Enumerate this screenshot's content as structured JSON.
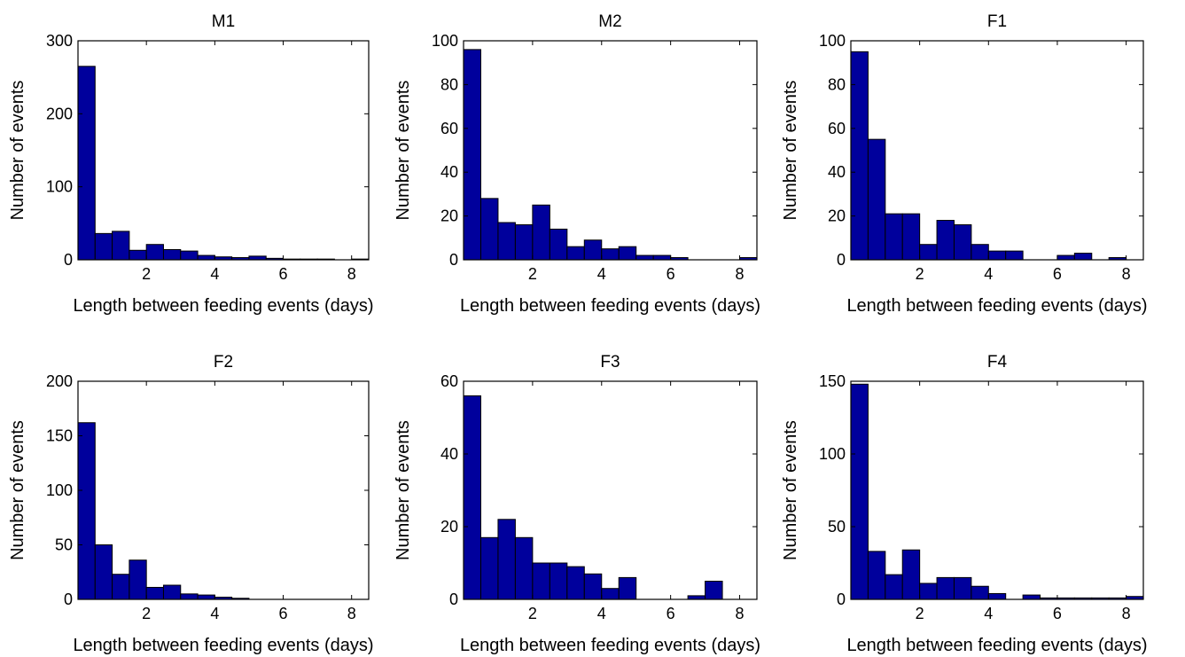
{
  "chart_data": [
    {
      "type": "bar",
      "title": "M1",
      "xlabel": "Length between feeding events (days)",
      "ylabel": "Number of events",
      "xlim": [
        0,
        8.5
      ],
      "ylim": [
        0,
        300
      ],
      "bin_width": 0.5,
      "bin_starts": [
        0,
        0.5,
        1,
        1.5,
        2,
        2.5,
        3,
        3.5,
        4,
        4.5,
        5,
        5.5,
        6,
        6.5,
        7,
        7.5,
        8
      ],
      "values": [
        265,
        36,
        39,
        13,
        21,
        14,
        12,
        6,
        4,
        3,
        5,
        2,
        1,
        1,
        1,
        0,
        1
      ],
      "xticks": [
        "2",
        "4",
        "6",
        "8"
      ],
      "yticks": [
        "0",
        "100",
        "200",
        "300"
      ]
    },
    {
      "type": "bar",
      "title": "M2",
      "xlabel": "Length between feeding events (days)",
      "ylabel": "Number of events",
      "xlim": [
        0,
        8.5
      ],
      "ylim": [
        0,
        100
      ],
      "bin_width": 0.5,
      "bin_starts": [
        0,
        0.5,
        1,
        1.5,
        2,
        2.5,
        3,
        3.5,
        4,
        4.5,
        5,
        5.5,
        6,
        6.5,
        7,
        7.5,
        8
      ],
      "values": [
        96,
        28,
        17,
        16,
        25,
        14,
        6,
        9,
        5,
        6,
        2,
        2,
        1,
        0,
        0,
        0,
        1
      ],
      "xticks": [
        "2",
        "4",
        "6",
        "8"
      ],
      "yticks": [
        "0",
        "20",
        "40",
        "60",
        "80",
        "100"
      ]
    },
    {
      "type": "bar",
      "title": "F1",
      "xlabel": "Length between feeding events (days)",
      "ylabel": "Number of events",
      "xlim": [
        0,
        8.5
      ],
      "ylim": [
        0,
        100
      ],
      "bin_width": 0.5,
      "bin_starts": [
        0,
        0.5,
        1,
        1.5,
        2,
        2.5,
        3,
        3.5,
        4,
        4.5,
        5,
        5.5,
        6,
        6.5,
        7,
        7.5,
        8
      ],
      "values": [
        95,
        55,
        21,
        21,
        7,
        18,
        16,
        7,
        4,
        4,
        0,
        0,
        2,
        3,
        0,
        1,
        0
      ],
      "xticks": [
        "2",
        "4",
        "6",
        "8"
      ],
      "yticks": [
        "0",
        "20",
        "40",
        "60",
        "80",
        "100"
      ]
    },
    {
      "type": "bar",
      "title": "F2",
      "xlabel": "Length between feeding events (days)",
      "ylabel": "Number of events",
      "xlim": [
        0,
        8.5
      ],
      "ylim": [
        0,
        200
      ],
      "bin_width": 0.5,
      "bin_starts": [
        0,
        0.5,
        1,
        1.5,
        2,
        2.5,
        3,
        3.5,
        4,
        4.5,
        5,
        5.5,
        6,
        6.5,
        7,
        7.5,
        8
      ],
      "values": [
        162,
        50,
        23,
        36,
        11,
        13,
        5,
        4,
        2,
        1,
        0,
        0,
        0,
        0,
        0,
        0,
        0
      ],
      "xticks": [
        "2",
        "4",
        "6",
        "8"
      ],
      "yticks": [
        "0",
        "50",
        "100",
        "150",
        "200"
      ]
    },
    {
      "type": "bar",
      "title": "F3",
      "xlabel": "Length between feeding events (days)",
      "ylabel": "Number of events",
      "xlim": [
        0,
        8.5
      ],
      "ylim": [
        0,
        60
      ],
      "bin_width": 0.5,
      "bin_starts": [
        0,
        0.5,
        1,
        1.5,
        2,
        2.5,
        3,
        3.5,
        4,
        4.5,
        5,
        5.5,
        6,
        6.5,
        7,
        7.5,
        8
      ],
      "values": [
        56,
        17,
        22,
        17,
        10,
        10,
        9,
        7,
        3,
        6,
        0,
        0,
        0,
        1,
        5,
        0,
        0
      ],
      "xticks": [
        "2",
        "4",
        "6",
        "8"
      ],
      "yticks": [
        "0",
        "20",
        "40",
        "60"
      ]
    },
    {
      "type": "bar",
      "title": "F4",
      "xlabel": "Length between feeding events (days)",
      "ylabel": "Number of events",
      "xlim": [
        0,
        8.5
      ],
      "ylim": [
        0,
        150
      ],
      "bin_width": 0.5,
      "bin_starts": [
        0,
        0.5,
        1,
        1.5,
        2,
        2.5,
        3,
        3.5,
        4,
        4.5,
        5,
        5.5,
        6,
        6.5,
        7,
        7.5,
        8
      ],
      "values": [
        148,
        33,
        17,
        34,
        11,
        15,
        15,
        9,
        4,
        0,
        3,
        1,
        1,
        1,
        1,
        1,
        2
      ],
      "xticks": [
        "2",
        "4",
        "6",
        "8"
      ],
      "yticks": [
        "0",
        "50",
        "100",
        "150"
      ]
    }
  ]
}
